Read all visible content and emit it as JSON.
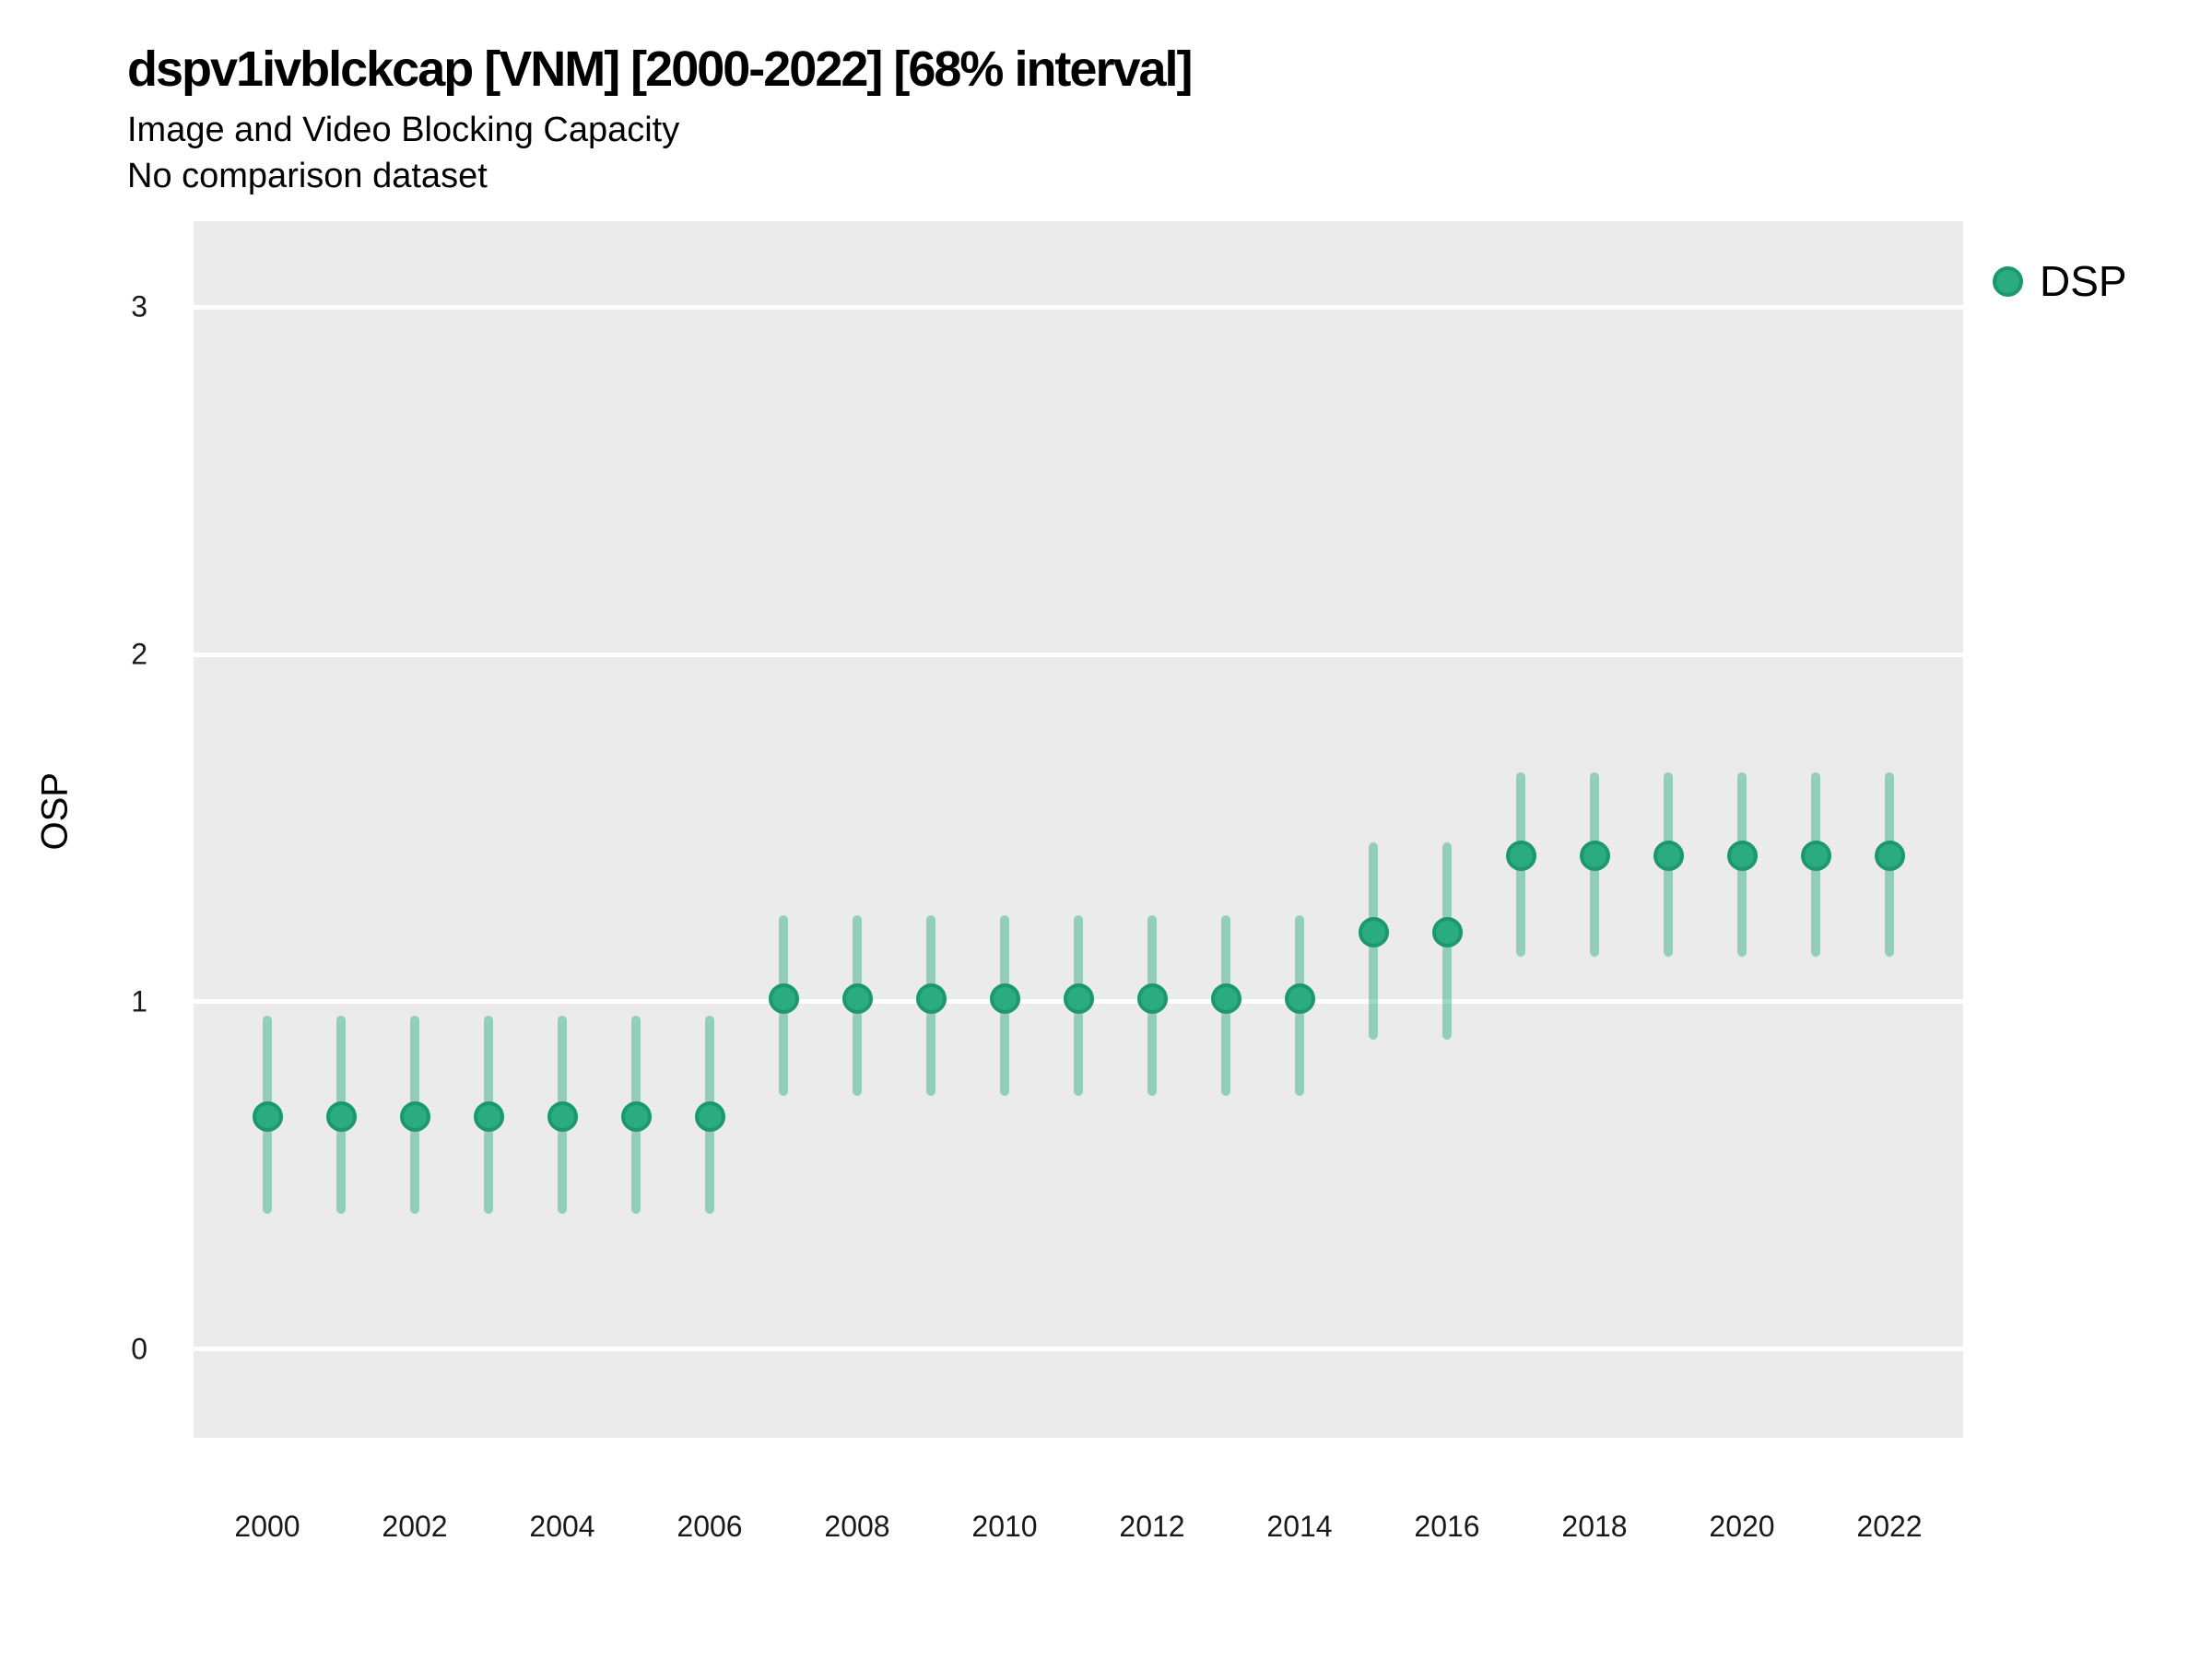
{
  "header": {
    "title": "dspv1ivblckcap [VNM] [2000-2022] [68% interval]",
    "subtitle": "Image and Video Blocking Capacity",
    "comparison_note": "No comparison dataset"
  },
  "legend": {
    "label": "DSP"
  },
  "colors": {
    "point_fill": "#2aab80",
    "point_stroke": "#1d9770",
    "interval_bar": "rgba(42,168,126,0.45)",
    "panel_background": "#ebebeb",
    "gridline": "#ffffff"
  },
  "chart_data": {
    "type": "scatter",
    "title": "dspv1ivblckcap [VNM] [2000-2022] [68% interval]",
    "subtitle": "Image and Video Blocking Capacity",
    "note": "No comparison dataset",
    "xlabel": "",
    "ylabel": "OSP",
    "interval": "68%",
    "grid": "horizontal-major-only",
    "legend_position": "right-top",
    "x_axis": {
      "min": 1999.0,
      "max": 2023.0,
      "ticks": [
        2000,
        2002,
        2004,
        2006,
        2008,
        2010,
        2012,
        2014,
        2016,
        2018,
        2020,
        2022
      ]
    },
    "y_axis": {
      "min": -0.255,
      "max": 3.247,
      "ticks": [
        0,
        1,
        2,
        3
      ]
    },
    "series": [
      {
        "name": "DSP",
        "points": [
          {
            "year": 2000,
            "est": 0.67,
            "lo": 0.39,
            "hi": 0.96
          },
          {
            "year": 2001,
            "est": 0.67,
            "lo": 0.39,
            "hi": 0.96
          },
          {
            "year": 2002,
            "est": 0.67,
            "lo": 0.39,
            "hi": 0.96
          },
          {
            "year": 2003,
            "est": 0.67,
            "lo": 0.39,
            "hi": 0.96
          },
          {
            "year": 2004,
            "est": 0.67,
            "lo": 0.39,
            "hi": 0.96
          },
          {
            "year": 2005,
            "est": 0.67,
            "lo": 0.39,
            "hi": 0.96
          },
          {
            "year": 2006,
            "est": 0.67,
            "lo": 0.39,
            "hi": 0.96
          },
          {
            "year": 2007,
            "est": 1.01,
            "lo": 0.73,
            "hi": 1.25
          },
          {
            "year": 2008,
            "est": 1.01,
            "lo": 0.73,
            "hi": 1.25
          },
          {
            "year": 2009,
            "est": 1.01,
            "lo": 0.73,
            "hi": 1.25
          },
          {
            "year": 2010,
            "est": 1.01,
            "lo": 0.73,
            "hi": 1.25
          },
          {
            "year": 2011,
            "est": 1.01,
            "lo": 0.73,
            "hi": 1.25
          },
          {
            "year": 2012,
            "est": 1.01,
            "lo": 0.73,
            "hi": 1.25
          },
          {
            "year": 2013,
            "est": 1.01,
            "lo": 0.73,
            "hi": 1.25
          },
          {
            "year": 2014,
            "est": 1.01,
            "lo": 0.73,
            "hi": 1.25
          },
          {
            "year": 2015,
            "est": 1.2,
            "lo": 0.89,
            "hi": 1.46
          },
          {
            "year": 2016,
            "est": 1.2,
            "lo": 0.89,
            "hi": 1.46
          },
          {
            "year": 2017,
            "est": 1.42,
            "lo": 1.13,
            "hi": 1.66
          },
          {
            "year": 2018,
            "est": 1.42,
            "lo": 1.13,
            "hi": 1.66
          },
          {
            "year": 2019,
            "est": 1.42,
            "lo": 1.13,
            "hi": 1.66
          },
          {
            "year": 2020,
            "est": 1.42,
            "lo": 1.13,
            "hi": 1.66
          },
          {
            "year": 2021,
            "est": 1.42,
            "lo": 1.13,
            "hi": 1.66
          },
          {
            "year": 2022,
            "est": 1.42,
            "lo": 1.13,
            "hi": 1.66
          }
        ]
      }
    ]
  }
}
